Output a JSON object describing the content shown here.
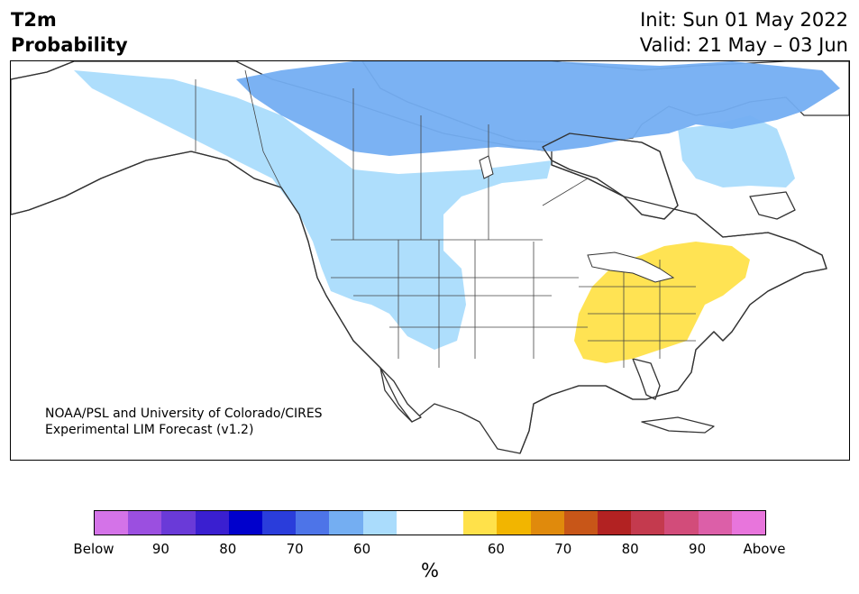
{
  "header": {
    "title_line1": "T2m",
    "title_line2": "Probability",
    "init": "Init: Sun 01 May 2022",
    "valid": "Valid: 21 May – 03 Jun"
  },
  "credit": {
    "line1": "NOAA/PSL and University of Colorado/CIRES",
    "line2": "Experimental LIM Forecast (v1.2)"
  },
  "colorbar": {
    "unit": "%",
    "colors": [
      "#d473e8",
      "#9b4fe0",
      "#6a3ad8",
      "#3a1fd0",
      "#0000cc",
      "#2a3ddb",
      "#4d74e8",
      "#74aef2",
      "#aadcfc",
      "#ffffff",
      "#ffffff",
      "#ffe14a",
      "#f2b500",
      "#e08a0c",
      "#c85618",
      "#b22222",
      "#c43a4e",
      "#d24c7a",
      "#dc5fa8",
      "#e875dc"
    ],
    "ticks": [
      "Below",
      "90",
      "80",
      "70",
      "60",
      "60",
      "70",
      "80",
      "90",
      "Above"
    ]
  },
  "map": {
    "ocean_color": "#ffffff",
    "land_outline_color": "#333333",
    "anomaly_colors": {
      "below_60": "#aadcfc",
      "below_70": "#74aef2",
      "above_60": "#ffe14a"
    }
  }
}
